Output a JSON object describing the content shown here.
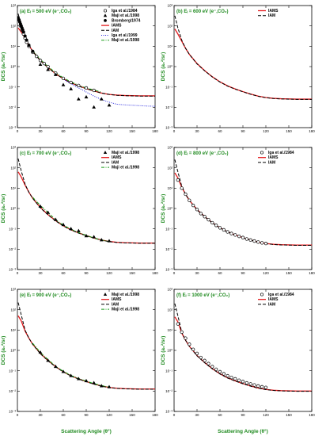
{
  "figure": {
    "xlabel": "Scattering Angle (θ°)",
    "ylabel": "DCS (a₀²/sr)"
  },
  "colors": {
    "IAMS": "#e41a1c",
    "IAM": "#000000",
    "Iga et al./1999": "#2222dd",
    "Maji et al./1998": "#1a9e1a",
    "Iga et al./1984": "#000000",
    "Bromberg/1974": "#000000",
    "label": "#1f8a1f"
  },
  "chart_data": [
    {
      "type": "line",
      "label": "(a) Eᵢ = 500 eV (e⁻,CO₂)",
      "xlim": [
        0,
        180
      ],
      "ylim": [
        -3,
        3
      ],
      "yscale": "log",
      "xticks": [
        0,
        30,
        60,
        90,
        120,
        150,
        180
      ],
      "yticks": [
        "10³",
        "10²",
        "10¹",
        "10⁰",
        "10⁻¹",
        "10⁻²",
        "10⁻³"
      ],
      "legend": "top-right",
      "x": [
        1,
        5,
        10,
        15,
        20,
        30,
        40,
        50,
        60,
        70,
        80,
        90,
        100,
        110,
        120,
        130,
        140,
        150,
        160,
        170,
        180
      ],
      "series": [
        {
          "name": "IAMS",
          "style": "solid",
          "values": [
            1.9,
            1.7,
            1.4,
            1.05,
            0.75,
            0.3,
            -0.05,
            -0.35,
            -0.6,
            -0.8,
            -0.95,
            -1.08,
            -1.2,
            -1.3,
            -1.37,
            -1.4,
            -1.42,
            -1.43,
            -1.44,
            -1.44,
            -1.44
          ]
        },
        {
          "name": "IAM",
          "style": "dashed",
          "values": [
            2.6,
            2.0,
            1.45,
            1.05,
            0.75,
            0.28,
            -0.05,
            -0.35,
            -0.6,
            -0.8,
            -0.96,
            -1.09,
            -1.2,
            -1.3,
            -1.37,
            -1.41,
            -1.43,
            -1.44,
            -1.45,
            -1.45,
            -1.45
          ]
        },
        {
          "name": "Iga et al./1999",
          "style": "dotted",
          "values": [
            null,
            null,
            null,
            null,
            null,
            null,
            null,
            null,
            -0.62,
            -0.85,
            -1.05,
            -1.25,
            -1.45,
            -1.62,
            -1.75,
            -1.85,
            -1.88,
            -1.9,
            -1.92,
            -1.94,
            -1.95
          ]
        },
        {
          "name": "Maji et al./1998",
          "style": "dashdot",
          "values": [
            null,
            null,
            null,
            null,
            0.8,
            0.35,
            0.0,
            -0.3,
            -0.55,
            -0.75,
            -0.92,
            -1.05,
            -1.15,
            -1.25,
            null,
            null,
            null,
            null,
            null,
            null,
            null
          ]
        }
      ],
      "points": [
        {
          "name": "Iga et al./1984",
          "marker": "circle-open",
          "x": [
            2,
            4,
            6,
            8,
            10,
            12,
            15,
            20,
            25,
            30,
            35,
            40,
            50,
            60,
            70,
            80,
            90,
            100
          ],
          "y": [
            2.3,
            2.0,
            1.8,
            1.6,
            1.4,
            1.2,
            1.0,
            0.7,
            0.5,
            0.3,
            0.15,
            0.0,
            -0.32,
            -0.58,
            -0.78,
            -0.93,
            -1.05,
            -1.17
          ]
        },
        {
          "name": "Maji et al./1998",
          "marker": "triangle",
          "x": [
            30,
            40,
            50,
            60,
            70,
            80,
            90,
            100,
            110,
            120
          ],
          "y": [
            0.1,
            -0.15,
            -0.4,
            -0.9,
            -1.1,
            -1.6,
            -1.5,
            -2.0,
            -1.6,
            -1.9
          ]
        },
        {
          "name": "Bromberg/1974",
          "marker": "circle-filled",
          "x": [
            1,
            2,
            3,
            4,
            5,
            6,
            7,
            8,
            10,
            12,
            15,
            20
          ],
          "y": [
            2.4,
            2.3,
            2.2,
            2.1,
            2.0,
            1.9,
            1.8,
            1.7,
            1.5,
            1.3,
            1.05,
            0.75
          ]
        }
      ],
      "legend_entries": [
        "Iga et al./1984",
        "Maji et al./1998",
        "Bromberg/1974",
        "IAMS",
        "IAM",
        "Iga et al./1999",
        "Maji et al./1998"
      ]
    },
    {
      "type": "line",
      "label": "(b) Eᵢ = 600 eV (e⁻,CO₂)",
      "xlim": [
        0,
        180
      ],
      "ylim": [
        -3,
        3
      ],
      "yscale": "log",
      "xticks": [
        0,
        30,
        60,
        90,
        120,
        150,
        180
      ],
      "yticks": [
        "10³",
        "10²",
        "10¹",
        "10⁰",
        "10⁻¹",
        "10⁻²",
        "10⁻³"
      ],
      "legend": "top-right",
      "x": [
        1,
        5,
        10,
        15,
        20,
        30,
        40,
        50,
        60,
        70,
        80,
        90,
        100,
        110,
        120,
        130,
        140,
        150,
        160,
        170,
        180
      ],
      "series": [
        {
          "name": "IAMS",
          "style": "solid",
          "values": [
            1.85,
            1.6,
            1.25,
            0.9,
            0.6,
            0.15,
            -0.2,
            -0.5,
            -0.75,
            -0.95,
            -1.1,
            -1.23,
            -1.35,
            -1.45,
            -1.52,
            -1.56,
            -1.58,
            -1.59,
            -1.6,
            -1.6,
            -1.6
          ]
        },
        {
          "name": "IAM",
          "style": "dashed",
          "values": [
            2.5,
            1.9,
            1.3,
            0.9,
            0.6,
            0.13,
            -0.21,
            -0.51,
            -0.76,
            -0.96,
            -1.11,
            -1.24,
            -1.36,
            -1.46,
            -1.53,
            -1.57,
            -1.59,
            -1.6,
            -1.61,
            -1.61,
            -1.61
          ]
        }
      ],
      "points": [],
      "legend_entries": [
        "IAMS",
        "IAM"
      ]
    },
    {
      "type": "line",
      "label": "(c) Eᵢ = 700 eV (e⁻,CO₂)",
      "xlim": [
        0,
        180
      ],
      "ylim": [
        -3,
        3
      ],
      "yscale": "log",
      "xticks": [
        0,
        30,
        60,
        90,
        120,
        150,
        180
      ],
      "yticks": [
        "10³",
        "10²",
        "10¹",
        "10⁰",
        "10⁻¹",
        "10⁻²",
        "10⁻³"
      ],
      "legend": "top-right",
      "x": [
        1,
        5,
        10,
        15,
        20,
        30,
        40,
        50,
        60,
        70,
        80,
        90,
        100,
        110,
        120,
        130,
        140,
        150,
        160,
        170,
        180
      ],
      "series": [
        {
          "name": "IAMS",
          "style": "solid",
          "values": [
            1.8,
            1.55,
            1.15,
            0.8,
            0.5,
            0.05,
            -0.3,
            -0.6,
            -0.85,
            -1.05,
            -1.2,
            -1.33,
            -1.45,
            -1.55,
            -1.62,
            -1.66,
            -1.68,
            -1.69,
            -1.7,
            -1.7,
            -1.7
          ]
        },
        {
          "name": "IAM",
          "style": "dashed",
          "values": [
            2.45,
            1.85,
            1.2,
            0.8,
            0.5,
            0.03,
            -0.31,
            -0.61,
            -0.86,
            -1.06,
            -1.21,
            -1.34,
            -1.46,
            -1.56,
            -1.63,
            -1.67,
            -1.69,
            -1.7,
            -1.71,
            -1.71,
            -1.71
          ]
        },
        {
          "name": "Maji et al./1998",
          "style": "dashdot",
          "values": [
            null,
            null,
            null,
            null,
            0.55,
            0.15,
            -0.2,
            -0.55,
            -0.82,
            -1.02,
            -1.18,
            -1.32,
            -1.45,
            -1.55,
            -1.62,
            null,
            null,
            null,
            null,
            null,
            null
          ]
        }
      ],
      "points": [
        {
          "name": "Maji et al./1998",
          "marker": "triangle",
          "x": [
            30,
            40,
            50,
            60,
            70,
            80,
            90,
            100,
            110,
            120
          ],
          "y": [
            0.1,
            -0.2,
            -0.55,
            -0.8,
            -1.0,
            -1.1,
            -1.35,
            -1.4,
            -1.55,
            -1.6
          ]
        }
      ],
      "legend_entries": [
        "Maji et al./1998",
        "IAMS",
        "IAM",
        "Maji et al./1998"
      ]
    },
    {
      "type": "line",
      "label": "(d) Eᵢ = 800 eV (e⁻,CO₂)",
      "xlim": [
        0,
        180
      ],
      "ylim": [
        -3,
        3
      ],
      "yscale": "log",
      "xticks": [
        0,
        30,
        60,
        90,
        120,
        150,
        180
      ],
      "yticks": [
        "10³",
        "10²",
        "10¹",
        "10⁰",
        "10⁻¹",
        "10⁻²",
        "10⁻³"
      ],
      "legend": "top-right",
      "x": [
        1,
        5,
        10,
        15,
        20,
        30,
        40,
        50,
        60,
        70,
        80,
        90,
        100,
        110,
        120,
        130,
        140,
        150,
        160,
        170,
        180
      ],
      "series": [
        {
          "name": "IAMS",
          "style": "solid",
          "values": [
            1.75,
            1.5,
            1.05,
            0.7,
            0.4,
            -0.05,
            -0.4,
            -0.7,
            -0.95,
            -1.15,
            -1.3,
            -1.43,
            -1.55,
            -1.65,
            -1.72,
            -1.76,
            -1.78,
            -1.79,
            -1.8,
            -1.8,
            -1.8
          ]
        },
        {
          "name": "IAM",
          "style": "dashed",
          "values": [
            2.4,
            1.8,
            1.1,
            0.7,
            0.4,
            -0.07,
            -0.41,
            -0.71,
            -0.96,
            -1.16,
            -1.31,
            -1.44,
            -1.56,
            -1.66,
            -1.73,
            -1.77,
            -1.79,
            -1.8,
            -1.81,
            -1.81,
            -1.81
          ]
        }
      ],
      "points": [
        {
          "name": "Iga et al./1984",
          "marker": "circle-open",
          "x": [
            5,
            10,
            15,
            20,
            25,
            30,
            35,
            40,
            45,
            50,
            55,
            60,
            65,
            70,
            75,
            80,
            85,
            90,
            95,
            100,
            105,
            110,
            115,
            120
          ],
          "y": [
            1.4,
            1.0,
            0.7,
            0.4,
            0.15,
            -0.05,
            -0.25,
            -0.4,
            -0.55,
            -0.7,
            -0.83,
            -0.95,
            -1.05,
            -1.15,
            -1.23,
            -1.3,
            -1.37,
            -1.43,
            -1.5,
            -1.55,
            -1.6,
            -1.65,
            -1.69,
            -1.72
          ]
        }
      ],
      "legend_entries": [
        "Iga et al./1984",
        "IAMS",
        "IAM"
      ]
    },
    {
      "type": "line",
      "label": "(e) Eᵢ = 900 eV (e⁻,CO₂)",
      "xlim": [
        0,
        180
      ],
      "ylim": [
        -3,
        3
      ],
      "yscale": "log",
      "xticks": [
        0,
        30,
        60,
        90,
        120,
        150,
        180
      ],
      "yticks": [
        "10³",
        "10²",
        "10¹",
        "10⁰",
        "10⁻¹",
        "10⁻²",
        "10⁻³"
      ],
      "legend": "top-right",
      "x": [
        1,
        5,
        10,
        15,
        20,
        30,
        40,
        50,
        60,
        70,
        80,
        90,
        100,
        110,
        120,
        130,
        140,
        150,
        160,
        170,
        180
      ],
      "series": [
        {
          "name": "IAMS",
          "style": "solid",
          "values": [
            1.7,
            1.45,
            0.95,
            0.6,
            0.3,
            -0.15,
            -0.5,
            -0.8,
            -1.05,
            -1.25,
            -1.4,
            -1.53,
            -1.65,
            -1.75,
            -1.82,
            -1.86,
            -1.88,
            -1.89,
            -1.9,
            -1.9,
            -1.9
          ]
        },
        {
          "name": "IAM",
          "style": "dashed",
          "values": [
            2.35,
            1.75,
            1.0,
            0.6,
            0.3,
            -0.17,
            -0.51,
            -0.81,
            -1.06,
            -1.26,
            -1.41,
            -1.54,
            -1.66,
            -1.76,
            -1.83,
            -1.87,
            -1.89,
            -1.9,
            -1.91,
            -1.91,
            -1.91
          ]
        },
        {
          "name": "Maji et al./1998",
          "style": "dashdot",
          "values": [
            null,
            null,
            null,
            null,
            0.35,
            -0.1,
            -0.45,
            -0.78,
            -1.03,
            -1.23,
            -1.38,
            -1.51,
            -1.63,
            -1.73,
            -1.8,
            null,
            null,
            null,
            null,
            null,
            null
          ]
        }
      ],
      "points": [
        {
          "name": "Maji et al./1998",
          "marker": "triangle",
          "x": [
            30,
            40,
            50,
            60,
            70,
            80,
            90,
            100,
            110,
            120
          ],
          "y": [
            -0.1,
            -0.5,
            -0.8,
            -1.05,
            -1.25,
            -1.4,
            -1.5,
            -1.6,
            -1.75,
            -1.8
          ]
        }
      ],
      "legend_entries": [
        "Maji et al./1998",
        "IAMS",
        "IAM",
        "Maji et al./1998"
      ]
    },
    {
      "type": "line",
      "label": "(f) Eᵢ = 1000 eV (e⁻,CO₂)",
      "xlim": [
        0,
        180
      ],
      "ylim": [
        -3,
        3
      ],
      "yscale": "log",
      "xticks": [
        0,
        30,
        60,
        90,
        120,
        150,
        180
      ],
      "yticks": [
        "10³",
        "10²",
        "10¹",
        "10⁰",
        "10⁻¹",
        "10⁻²",
        "10⁻³"
      ],
      "legend": "top-right",
      "x": [
        1,
        5,
        10,
        15,
        20,
        30,
        40,
        50,
        60,
        70,
        80,
        90,
        100,
        110,
        120,
        130,
        140,
        150,
        160,
        170,
        180
      ],
      "series": [
        {
          "name": "IAMS",
          "style": "solid",
          "values": [
            1.65,
            1.4,
            0.85,
            0.5,
            0.2,
            -0.25,
            -0.6,
            -0.9,
            -1.15,
            -1.35,
            -1.5,
            -1.63,
            -1.75,
            -1.85,
            -1.92,
            -1.96,
            -1.98,
            -1.99,
            -2.0,
            -2.0,
            -2.0
          ]
        },
        {
          "name": "IAM",
          "style": "dashed",
          "values": [
            2.3,
            1.7,
            0.9,
            0.5,
            0.2,
            -0.27,
            -0.61,
            -0.91,
            -1.16,
            -1.36,
            -1.51,
            -1.64,
            -1.76,
            -1.86,
            -1.93,
            -1.97,
            -1.99,
            -2.0,
            -2.01,
            -2.01,
            -2.01
          ]
        }
      ],
      "points": [
        {
          "name": "Iga et al./1984",
          "marker": "circle-open",
          "x": [
            5,
            10,
            15,
            20,
            25,
            30,
            35,
            40,
            45,
            50,
            55,
            60,
            65,
            70,
            75,
            80,
            85,
            90,
            95,
            100,
            105,
            110,
            115,
            120
          ],
          "y": [
            1.3,
            0.9,
            0.6,
            0.3,
            0.05,
            -0.15,
            -0.35,
            -0.5,
            -0.65,
            -0.8,
            -0.93,
            -1.05,
            -1.15,
            -1.25,
            -1.33,
            -1.4,
            -1.47,
            -1.53,
            -1.6,
            -1.65,
            -1.7,
            -1.75,
            -1.79,
            -1.82
          ]
        }
      ],
      "legend_entries": [
        "Iga et al./1984",
        "IAMS",
        "IAM"
      ]
    }
  ]
}
